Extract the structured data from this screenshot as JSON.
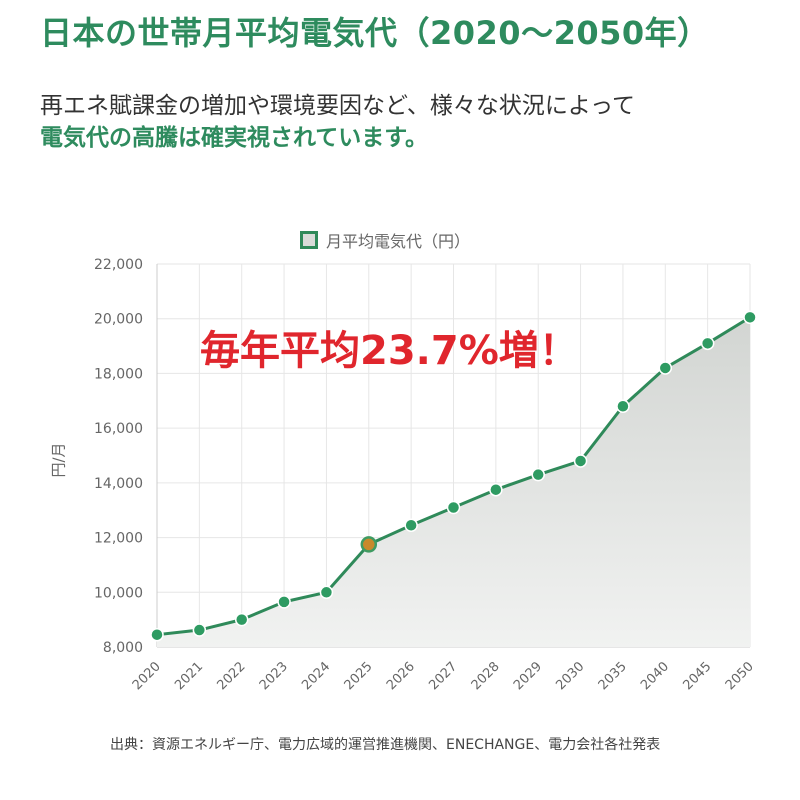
{
  "header": {
    "title": "日本の世帯月平均電気代（2020～2050年）",
    "subtitle_line1": "再エネ賦課金の増加や環境要因など、様々な状況によって",
    "subtitle_line2": "電気代の高騰は確実視されています。"
  },
  "annotation": "毎年平均23.7%増！",
  "source": "出典：資源エネルギー庁、電力広域的運営推進機関、ENECHANGE、電力会社各社発表",
  "colors": {
    "line": "#2f8a5a",
    "point": "#2e9b62",
    "highlight_point": "#c8892b",
    "area": "#dfe1df",
    "grid": "#e6e6e6",
    "annotation": "#e0262d",
    "title": "#2e8b5e"
  },
  "chart_data": {
    "type": "area",
    "categories": [
      "2020",
      "2021",
      "2022",
      "2023",
      "2024",
      "2025",
      "2026",
      "2027",
      "2028",
      "2029",
      "2030",
      "2035",
      "2040",
      "2045",
      "2050"
    ],
    "series": [
      {
        "name": "月平均電気代（円）",
        "values": [
          8450,
          8620,
          9000,
          9650,
          10000,
          11750,
          12450,
          13100,
          13750,
          14300,
          14800,
          16800,
          18200,
          19100,
          20050
        ]
      }
    ],
    "highlight_category": "2025",
    "ylabel": "円/月",
    "ylim": [
      8000,
      22000
    ],
    "yticks": [
      "8,000",
      "10,000",
      "12,000",
      "14,000",
      "16,000",
      "18,000",
      "20,000",
      "22,000"
    ],
    "grid": true,
    "legend": "top-center"
  }
}
